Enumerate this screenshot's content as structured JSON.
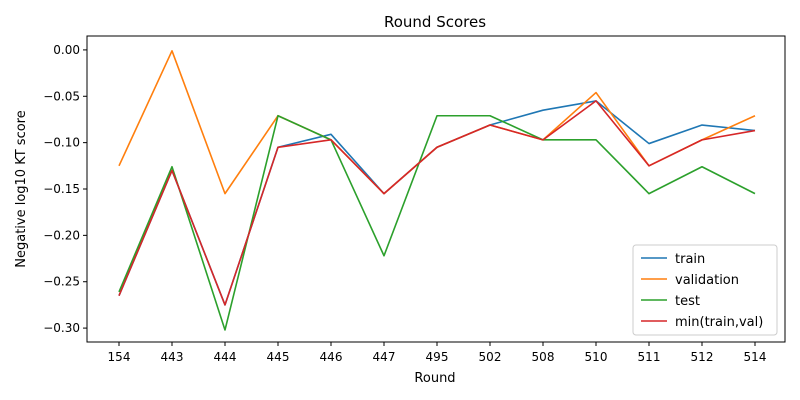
{
  "chart_data": {
    "type": "line",
    "title": "Round Scores",
    "xlabel": "Round",
    "ylabel": "Negative log10 KT score",
    "categories": [
      "154",
      "443",
      "444",
      "445",
      "446",
      "447",
      "495",
      "502",
      "508",
      "510",
      "511",
      "512",
      "514"
    ],
    "ylim": [
      -0.315,
      0.015
    ],
    "yticks": [
      0.0,
      -0.05,
      -0.1,
      -0.15,
      -0.2,
      -0.25,
      -0.3
    ],
    "ytick_labels": [
      "0.00",
      "−0.05",
      "−0.10",
      "−0.15",
      "−0.20",
      "−0.25",
      "−0.30"
    ],
    "grid": false,
    "legend_position": "lower-right",
    "series": [
      {
        "name": "train",
        "color": "#1f77b4",
        "values": [
          -0.265,
          -0.13,
          -0.275,
          -0.105,
          -0.091,
          -0.155,
          -0.105,
          -0.081,
          -0.065,
          -0.055,
          -0.101,
          -0.081,
          -0.087
        ]
      },
      {
        "name": "validation",
        "color": "#ff7f0e",
        "values": [
          -0.125,
          -0.001,
          -0.155,
          -0.071,
          -0.097,
          -0.155,
          -0.105,
          -0.081,
          -0.097,
          -0.046,
          -0.125,
          -0.097,
          -0.071
        ]
      },
      {
        "name": "test",
        "color": "#2ca02c",
        "values": [
          -0.261,
          -0.126,
          -0.302,
          -0.071,
          -0.097,
          -0.222,
          -0.071,
          -0.071,
          -0.097,
          -0.097,
          -0.155,
          -0.126,
          -0.155
        ]
      },
      {
        "name": "min(train,val)",
        "color": "#d62728",
        "values": [
          -0.265,
          -0.13,
          -0.275,
          -0.105,
          -0.097,
          -0.155,
          -0.105,
          -0.081,
          -0.097,
          -0.055,
          -0.125,
          -0.097,
          -0.087
        ]
      }
    ]
  }
}
